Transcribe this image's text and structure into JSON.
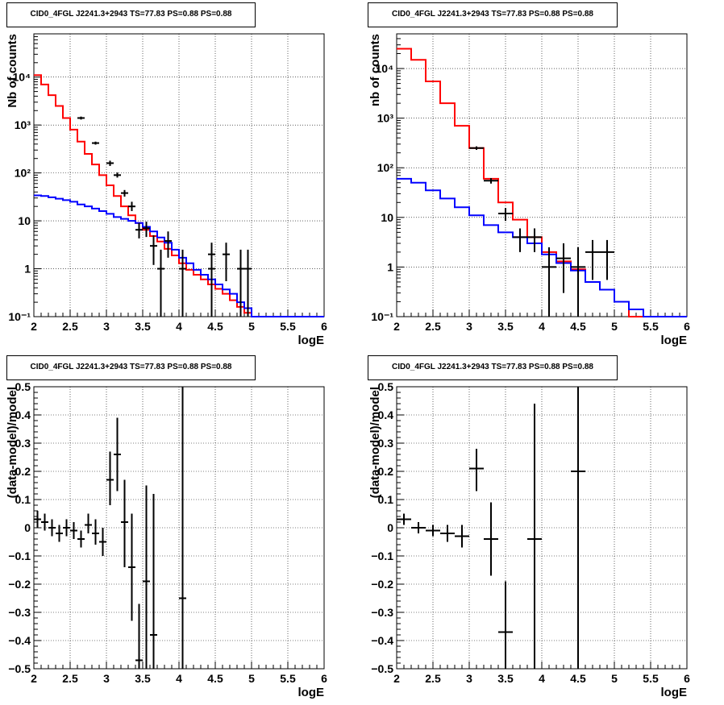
{
  "chart_data": [
    {
      "type": "histogram",
      "title": "CID0_4FGL J2241.3+2943 TS=77.83 PS=0.88 PS=0.88",
      "xlabel": "logE",
      "ylabel": "Nb of counts",
      "xlim": [
        2,
        6
      ],
      "ylim": [
        0.1,
        80000
      ],
      "yscale": "log",
      "grid": true,
      "x_ticks": [
        2,
        2.5,
        3,
        3.5,
        4,
        4.5,
        5,
        5.5,
        6
      ],
      "x_tick_labels": [
        "2",
        "2.5",
        "3",
        "3.5",
        "4",
        "4.5",
        "5",
        "5.5",
        "6"
      ],
      "y_ticks": [
        0.1,
        1,
        10,
        100,
        1000,
        10000
      ],
      "y_tick_labels": [
        "10⁻¹",
        "1",
        "10",
        "10²",
        "10³",
        "10⁴"
      ],
      "bin_edges": [
        2.0,
        2.1,
        2.2,
        2.3,
        2.4,
        2.5,
        2.6,
        2.7,
        2.8,
        2.9,
        3.0,
        3.1,
        3.2,
        3.3,
        3.4,
        3.5,
        3.6,
        3.7,
        3.8,
        3.9,
        4.0,
        4.1,
        4.2,
        4.3,
        4.4,
        4.5,
        4.6,
        4.7,
        4.8,
        4.9,
        5.0,
        5.1,
        5.2,
        5.3,
        5.4,
        5.5,
        5.6,
        5.7,
        5.8,
        5.9,
        6.0
      ],
      "series": [
        {
          "color": "#ff0000",
          "style": "step",
          "values": [
            11000,
            7000,
            4200,
            2500,
            1400,
            800,
            450,
            250,
            150,
            90,
            55,
            33,
            20,
            13,
            9,
            6.5,
            4.8,
            3.7,
            2.6,
            1.9,
            1.3,
            0.95,
            0.75,
            0.6,
            0.47,
            0.38,
            0.3,
            0.22,
            0.16,
            0.12,
            0.1,
            0.1,
            0.1,
            0.1,
            0.1,
            0.1,
            0.1,
            0.1,
            0.1,
            0.1
          ]
        },
        {
          "color": "#0000ff",
          "style": "step",
          "values": [
            34,
            33,
            31,
            29,
            27,
            25,
            22,
            20,
            18,
            16,
            14,
            12,
            11,
            10,
            9,
            7.5,
            6,
            4.5,
            3.5,
            2.5,
            1.7,
            1.3,
            0.95,
            0.75,
            0.6,
            0.47,
            0.37,
            0.3,
            0.2,
            0.15,
            0.1,
            0.1,
            0.1,
            0.1,
            0.1,
            0.1,
            0.1,
            0.1,
            0.1,
            0.1
          ]
        }
      ],
      "points": [
        {
          "x": 2.65,
          "y": 1400,
          "xerr": 0.05,
          "ylo": 1300,
          "yhi": 1500
        },
        {
          "x": 2.85,
          "y": 420,
          "xerr": 0.05,
          "ylo": 390,
          "yhi": 450
        },
        {
          "x": 3.05,
          "y": 160,
          "xerr": 0.05,
          "ylo": 140,
          "yhi": 180
        },
        {
          "x": 3.15,
          "y": 90,
          "xerr": 0.05,
          "ylo": 80,
          "yhi": 102
        },
        {
          "x": 3.25,
          "y": 38,
          "xerr": 0.05,
          "ylo": 32,
          "yhi": 44
        },
        {
          "x": 3.35,
          "y": 20,
          "xerr": 0.05,
          "ylo": 16,
          "yhi": 25
        },
        {
          "x": 3.45,
          "y": 6.5,
          "xerr": 0.05,
          "ylo": 4.3,
          "yhi": 9
        },
        {
          "x": 3.55,
          "y": 7,
          "xerr": 0.05,
          "ylo": 4.6,
          "yhi": 9.6
        },
        {
          "x": 3.65,
          "y": 3,
          "xerr": 0.05,
          "ylo": 1.2,
          "yhi": 5
        },
        {
          "x": 3.75,
          "y": 1,
          "xerr": 0.05,
          "ylo": 0.1,
          "yhi": 2.5
        },
        {
          "x": 3.85,
          "y": 3.8,
          "xerr": 0.05,
          "ylo": 1.7,
          "yhi": 6
        },
        {
          "x": 4.05,
          "y": 1,
          "xerr": 0.05,
          "ylo": 0.1,
          "yhi": 2.5
        },
        {
          "x": 4.45,
          "y": 2,
          "xerr": 0.05,
          "ylo": 0.55,
          "yhi": 3.5
        },
        {
          "x": 4.45,
          "y": 1,
          "xerr": 0.05,
          "ylo": 0.1,
          "yhi": 2.5
        },
        {
          "x": 4.65,
          "y": 2,
          "xerr": 0.05,
          "ylo": 0.55,
          "yhi": 3.5
        },
        {
          "x": 4.85,
          "y": 1,
          "xerr": 0.05,
          "ylo": 0.1,
          "yhi": 2.5
        },
        {
          "x": 4.95,
          "y": 1,
          "xerr": 0.05,
          "ylo": 0.1,
          "yhi": 2.5
        }
      ]
    },
    {
      "type": "histogram",
      "title": "CID0_4FGL J2241.3+2943 TS=77.83 PS=0.88 PS=0.88",
      "xlabel": "logE",
      "ylabel": "nb of counts",
      "xlim": [
        2,
        6
      ],
      "ylim": [
        0.1,
        50000
      ],
      "yscale": "log",
      "grid": true,
      "x_ticks": [
        2,
        2.5,
        3,
        3.5,
        4,
        4.5,
        5,
        5.5,
        6
      ],
      "x_tick_labels": [
        "2",
        "2.5",
        "3",
        "3.5",
        "4",
        "4.5",
        "5",
        "5.5",
        "6"
      ],
      "y_ticks": [
        0.1,
        1,
        10,
        100,
        1000,
        10000
      ],
      "y_tick_labels": [
        "10⁻¹",
        "1",
        "10",
        "10²",
        "10³",
        "10⁴"
      ],
      "bin_edges": [
        2.0,
        2.2,
        2.4,
        2.6,
        2.8,
        3.0,
        3.2,
        3.4,
        3.6,
        3.8,
        4.0,
        4.2,
        4.4,
        4.6,
        4.8,
        5.0,
        5.2,
        5.4,
        5.6,
        5.8,
        6.0
      ],
      "series": [
        {
          "color": "#ff0000",
          "style": "step",
          "values": [
            25000,
            15000,
            5500,
            2000,
            700,
            250,
            60,
            20,
            9,
            4,
            2,
            1.3,
            0.9,
            0.5,
            0.35,
            0.2,
            0.1,
            0.1,
            0.1,
            0.1
          ]
        },
        {
          "color": "#0000ff",
          "style": "step",
          "values": [
            60,
            50,
            35,
            24,
            16,
            11,
            7,
            5,
            4,
            3,
            1.8,
            1.2,
            0.85,
            0.5,
            0.35,
            0.2,
            0.14,
            0.1,
            0.1,
            0.1
          ]
        }
      ],
      "points": [
        {
          "x": 3.1,
          "y": 250,
          "xerr": 0.1,
          "ylo": 230,
          "yhi": 270
        },
        {
          "x": 3.3,
          "y": 55,
          "xerr": 0.1,
          "ylo": 48,
          "yhi": 62
        },
        {
          "x": 3.5,
          "y": 12,
          "xerr": 0.1,
          "ylo": 8.5,
          "yhi": 15.5
        },
        {
          "x": 3.7,
          "y": 4,
          "xerr": 0.1,
          "ylo": 2,
          "yhi": 6
        },
        {
          "x": 3.9,
          "y": 4,
          "xerr": 0.1,
          "ylo": 2,
          "yhi": 6
        },
        {
          "x": 4.1,
          "y": 1,
          "xerr": 0.1,
          "ylo": 0.1,
          "yhi": 2.5
        },
        {
          "x": 4.3,
          "y": 1.5,
          "xerr": 0.1,
          "ylo": 0.3,
          "yhi": 3
        },
        {
          "x": 4.5,
          "y": 1,
          "xerr": 0.1,
          "ylo": 0.1,
          "yhi": 2.5
        },
        {
          "x": 4.7,
          "y": 2,
          "xerr": 0.1,
          "ylo": 0.55,
          "yhi": 3.5
        },
        {
          "x": 4.9,
          "y": 2,
          "xerr": 0.1,
          "ylo": 0.55,
          "yhi": 3.5
        }
      ]
    },
    {
      "type": "scatter",
      "title": "CID0_4FGL J2241.3+2943 TS=77.83 PS=0.88 PS=0.88",
      "xlabel": "logE",
      "ylabel": "(data-model)/model",
      "xlim": [
        2,
        6
      ],
      "ylim": [
        -0.5,
        0.5
      ],
      "yscale": "linear",
      "grid": true,
      "x_ticks": [
        2,
        2.5,
        3,
        3.5,
        4,
        4.5,
        5,
        5.5,
        6
      ],
      "x_tick_labels": [
        "2",
        "2.5",
        "3",
        "3.5",
        "4",
        "4.5",
        "5",
        "5.5",
        "6"
      ],
      "y_ticks": [
        -0.5,
        -0.4,
        -0.3,
        -0.2,
        -0.1,
        0,
        0.1,
        0.2,
        0.3,
        0.4,
        0.5
      ],
      "y_tick_labels": [
        "−0.5",
        "−0.4",
        "−0.3",
        "−0.2",
        "−0.1",
        "0",
        "0.1",
        "0.2",
        "0.3",
        "0.4",
        "0.5"
      ],
      "points": [
        {
          "x": 2.05,
          "y": 0.03,
          "xerr": 0.05,
          "ylo": 0.0,
          "yhi": 0.06
        },
        {
          "x": 2.15,
          "y": 0.02,
          "xerr": 0.05,
          "ylo": -0.01,
          "yhi": 0.05
        },
        {
          "x": 2.25,
          "y": 0.0,
          "xerr": 0.05,
          "ylo": -0.03,
          "yhi": 0.03
        },
        {
          "x": 2.35,
          "y": -0.02,
          "xerr": 0.05,
          "ylo": -0.05,
          "yhi": 0.01
        },
        {
          "x": 2.45,
          "y": 0.0,
          "xerr": 0.05,
          "ylo": -0.03,
          "yhi": 0.03
        },
        {
          "x": 2.55,
          "y": -0.01,
          "xerr": 0.05,
          "ylo": -0.04,
          "yhi": 0.02
        },
        {
          "x": 2.65,
          "y": -0.04,
          "xerr": 0.05,
          "ylo": -0.07,
          "yhi": -0.01
        },
        {
          "x": 2.75,
          "y": 0.01,
          "xerr": 0.05,
          "ylo": -0.02,
          "yhi": 0.05
        },
        {
          "x": 2.85,
          "y": -0.02,
          "xerr": 0.05,
          "ylo": -0.06,
          "yhi": 0.03
        },
        {
          "x": 2.95,
          "y": -0.05,
          "xerr": 0.05,
          "ylo": -0.1,
          "yhi": 0.0
        },
        {
          "x": 3.05,
          "y": 0.17,
          "xerr": 0.05,
          "ylo": 0.08,
          "yhi": 0.27
        },
        {
          "x": 3.15,
          "y": 0.26,
          "xerr": 0.05,
          "ylo": 0.13,
          "yhi": 0.39
        },
        {
          "x": 3.25,
          "y": 0.02,
          "xerr": 0.05,
          "ylo": -0.14,
          "yhi": 0.17
        },
        {
          "x": 3.35,
          "y": -0.14,
          "xerr": 0.05,
          "ylo": -0.33,
          "yhi": 0.05
        },
        {
          "x": 3.45,
          "y": -0.47,
          "xerr": 0.05,
          "ylo": -0.5,
          "yhi": -0.27
        },
        {
          "x": 3.55,
          "y": -0.19,
          "xerr": 0.05,
          "ylo": -0.5,
          "yhi": 0.15
        },
        {
          "x": 3.65,
          "y": -0.38,
          "xerr": 0.05,
          "ylo": -0.5,
          "yhi": 0.12
        },
        {
          "x": 4.05,
          "y": -0.25,
          "xerr": 0.05,
          "ylo": -0.5,
          "yhi": 0.5
        }
      ]
    },
    {
      "type": "scatter",
      "title": "CID0_4FGL J2241.3+2943 TS=77.83 PS=0.88 PS=0.88",
      "xlabel": "logE",
      "ylabel": "(data-model)/model",
      "xlim": [
        2,
        6
      ],
      "ylim": [
        -0.5,
        0.5
      ],
      "yscale": "linear",
      "grid": true,
      "x_ticks": [
        2,
        2.5,
        3,
        3.5,
        4,
        4.5,
        5,
        5.5,
        6
      ],
      "x_tick_labels": [
        "2",
        "2.5",
        "3",
        "3.5",
        "4",
        "4.5",
        "5",
        "5.5",
        "6"
      ],
      "y_ticks": [
        -0.5,
        -0.4,
        -0.3,
        -0.2,
        -0.1,
        0,
        0.1,
        0.2,
        0.3,
        0.4,
        0.5
      ],
      "y_tick_labels": [
        "−0.5",
        "−0.4",
        "−0.3",
        "−0.2",
        "−0.1",
        "0",
        "0.1",
        "0.2",
        "0.3",
        "0.4",
        "0.5"
      ],
      "points": [
        {
          "x": 2.1,
          "y": 0.03,
          "xerr": 0.1,
          "ylo": 0.01,
          "yhi": 0.05
        },
        {
          "x": 2.3,
          "y": 0.0,
          "xerr": 0.1,
          "ylo": -0.02,
          "yhi": 0.02
        },
        {
          "x": 2.5,
          "y": -0.01,
          "xerr": 0.1,
          "ylo": -0.03,
          "yhi": 0.01
        },
        {
          "x": 2.7,
          "y": -0.02,
          "xerr": 0.1,
          "ylo": -0.05,
          "yhi": 0.01
        },
        {
          "x": 2.9,
          "y": -0.03,
          "xerr": 0.1,
          "ylo": -0.07,
          "yhi": 0.01
        },
        {
          "x": 3.1,
          "y": 0.21,
          "xerr": 0.1,
          "ylo": 0.13,
          "yhi": 0.28
        },
        {
          "x": 3.3,
          "y": -0.04,
          "xerr": 0.1,
          "ylo": -0.17,
          "yhi": 0.09
        },
        {
          "x": 3.5,
          "y": -0.37,
          "xerr": 0.1,
          "ylo": -0.5,
          "yhi": -0.19
        },
        {
          "x": 3.9,
          "y": -0.04,
          "xerr": 0.1,
          "ylo": -0.5,
          "yhi": 0.44
        },
        {
          "x": 4.5,
          "y": 0.2,
          "xerr": 0.1,
          "ylo": -0.5,
          "yhi": 0.5
        }
      ]
    }
  ]
}
